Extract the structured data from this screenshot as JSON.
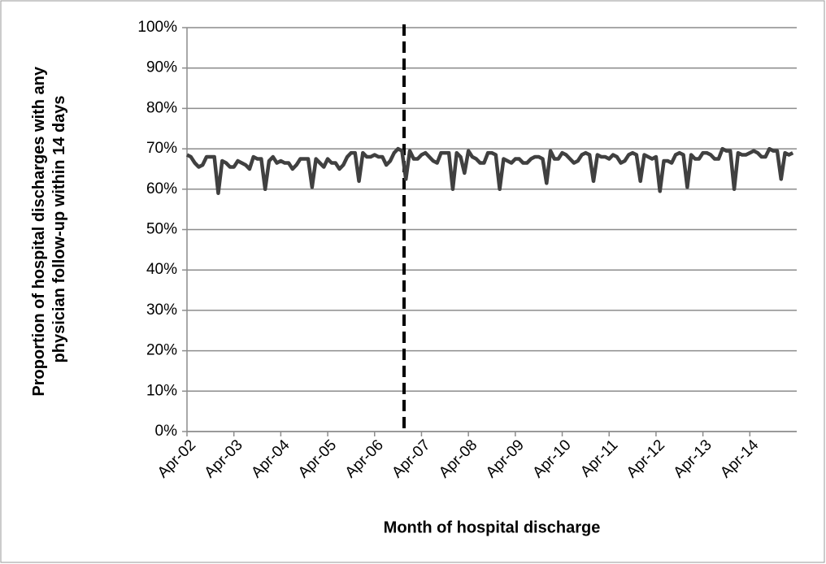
{
  "chart_data": {
    "type": "line",
    "x_label": "Month of hospital discharge",
    "y_label": [
      "Proportion of hospital discharges with any",
      "physician follow-up within 14 days"
    ],
    "categories": [
      "Apr-02",
      null,
      null,
      null,
      null,
      null,
      null,
      null,
      null,
      null,
      null,
      null,
      "Apr-03",
      null,
      null,
      null,
      null,
      null,
      null,
      null,
      null,
      null,
      null,
      null,
      "Apr-04",
      null,
      null,
      null,
      null,
      null,
      null,
      null,
      null,
      null,
      null,
      null,
      "Apr-05",
      null,
      null,
      null,
      null,
      null,
      null,
      null,
      null,
      null,
      null,
      null,
      "Apr-06",
      null,
      null,
      null,
      null,
      null,
      null,
      null,
      null,
      null,
      null,
      null,
      "Apr-07",
      null,
      null,
      null,
      null,
      null,
      null,
      null,
      null,
      null,
      null,
      null,
      "Apr-08",
      null,
      null,
      null,
      null,
      null,
      null,
      null,
      null,
      null,
      null,
      null,
      "Apr-09",
      null,
      null,
      null,
      null,
      null,
      null,
      null,
      null,
      null,
      null,
      null,
      "Apr-10",
      null,
      null,
      null,
      null,
      null,
      null,
      null,
      null,
      null,
      null,
      null,
      "Apr-11",
      null,
      null,
      null,
      null,
      null,
      null,
      null,
      null,
      null,
      null,
      null,
      "Apr-12",
      null,
      null,
      null,
      null,
      null,
      null,
      null,
      null,
      null,
      null,
      null,
      "Apr-13",
      null,
      null,
      null,
      null,
      null,
      null,
      null,
      null,
      null,
      null,
      null,
      "Apr-14",
      null,
      null,
      null,
      null,
      null,
      null,
      null,
      null,
      null,
      null,
      null
    ],
    "series": [
      {
        "color": "#404040",
        "values": [
          68.5,
          68,
          66.5,
          65.5,
          66,
          68,
          68,
          68,
          59,
          67,
          66.5,
          65.5,
          65.5,
          67,
          66.5,
          66,
          65,
          68,
          67.5,
          67.5,
          60,
          67,
          68,
          66.5,
          67,
          66.5,
          66.5,
          65,
          66,
          67.5,
          67.5,
          67.5,
          60.5,
          67.5,
          66.5,
          65.5,
          67.5,
          66.5,
          66.5,
          65,
          66,
          68,
          69,
          69,
          62,
          69,
          68,
          68,
          68.5,
          68,
          68,
          66,
          67,
          69,
          70,
          69.5,
          62.5,
          69.5,
          67.5,
          67.5,
          68.5,
          69,
          68,
          67,
          66.5,
          69,
          69,
          69,
          60,
          69,
          68,
          64,
          69.5,
          68,
          67.5,
          66.5,
          66.5,
          69,
          69,
          68.5,
          60,
          67.5,
          67,
          66.5,
          67.5,
          67.5,
          66.5,
          66.5,
          67.5,
          68,
          68,
          67.5,
          61.5,
          69.5,
          67.5,
          67.5,
          69,
          68.5,
          67.5,
          66.5,
          67,
          68.5,
          69,
          68.5,
          62,
          68.5,
          68,
          68,
          67.5,
          68.5,
          68,
          66.5,
          67,
          68.5,
          69,
          68.5,
          62,
          68.5,
          68,
          67.5,
          68,
          59.5,
          67,
          67,
          66.5,
          68.5,
          69,
          68.5,
          60.5,
          68.5,
          67.5,
          67.5,
          69,
          69,
          68.5,
          67.5,
          67.5,
          70,
          69.5,
          69.5,
          60,
          69,
          68.5,
          68.5,
          69,
          69.5,
          69,
          68,
          68,
          70,
          69.5,
          69.5,
          62.5,
          69,
          68.5,
          69
        ]
      }
    ],
    "ylim": [
      0,
      100
    ],
    "yticks": [
      {
        "value": 0,
        "label": "0%"
      },
      {
        "value": 10,
        "label": "10%"
      },
      {
        "value": 20,
        "label": "20%"
      },
      {
        "value": 30,
        "label": "30%"
      },
      {
        "value": 40,
        "label": "40%"
      },
      {
        "value": 50,
        "label": "50%"
      },
      {
        "value": 60,
        "label": "60%"
      },
      {
        "value": 70,
        "label": "70%"
      },
      {
        "value": 80,
        "label": "80%"
      },
      {
        "value": 90,
        "label": "90%"
      },
      {
        "value": 100,
        "label": "100%"
      }
    ],
    "grid": true
  }
}
